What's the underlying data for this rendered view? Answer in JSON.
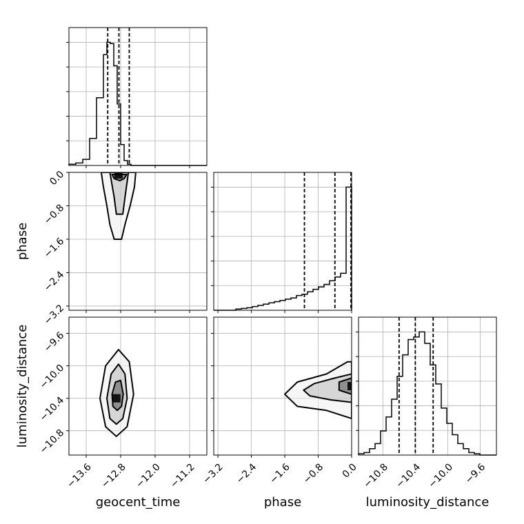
{
  "chart_data": {
    "type": "corner",
    "parameters": [
      "geocent_time",
      "phase",
      "luminosity_distance"
    ],
    "axes": {
      "geocent_time": {
        "label": "geocent_time",
        "range": [
          -14.0,
          -10.8
        ],
        "ticks": [
          -13.6,
          -12.8,
          -12.0,
          -11.2
        ],
        "tick_labels": [
          "−13.6",
          "−12.8",
          "−12.0",
          "−11.2"
        ],
        "quantiles": [
          -13.1,
          -12.84,
          -12.6
        ]
      },
      "phase": {
        "label": "phase",
        "range": [
          -3.3,
          0.0
        ],
        "ticks": [
          -3.2,
          -2.4,
          -1.6,
          -0.8,
          0.0
        ],
        "tick_labels": [
          "−3.2",
          "−2.4",
          "−1.6",
          "−0.8",
          "0.0"
        ],
        "quantiles": [
          -1.13,
          -0.4,
          0.0
        ]
      },
      "luminosity_distance": {
        "label": "luminosity_distance",
        "range": [
          -11.1,
          -9.4
        ],
        "ticks": [
          -10.8,
          -10.4,
          -10.0,
          -9.6
        ],
        "tick_labels": [
          "−10.8",
          "−10.4",
          "−10.0",
          "−9.6"
        ],
        "quantiles": [
          -10.6,
          -10.4,
          -10.18
        ]
      }
    },
    "histograms": {
      "geocent_time": {
        "bin_edges": [
          -14.0,
          -13.84,
          -13.68,
          -13.52,
          -13.36,
          -13.2,
          -13.12,
          -13.04,
          -12.96,
          -12.88,
          -12.8,
          -12.72,
          -12.64,
          -12.56,
          -12.48,
          -12.4,
          -12.24,
          -12.08,
          -11.92,
          -11.76,
          -11.6,
          -11.44,
          -11.28,
          -11.12,
          -10.96,
          -10.8
        ],
        "counts": [
          0.01,
          0.02,
          0.05,
          0.22,
          0.55,
          0.9,
          1.0,
          0.99,
          0.81,
          0.5,
          0.17,
          0.04,
          0.01,
          0.0,
          0.0,
          0.0,
          0.0,
          0.0,
          0.0,
          0.0,
          0.0,
          0.0,
          0.0,
          0.0,
          0.0
        ]
      },
      "phase": {
        "bin_edges": [
          -3.3,
          -3.168,
          -3.036,
          -2.904,
          -2.772,
          -2.64,
          -2.508,
          -2.376,
          -2.244,
          -2.112,
          -1.98,
          -1.848,
          -1.716,
          -1.584,
          -1.452,
          -1.32,
          -1.188,
          -1.056,
          -0.924,
          -0.792,
          -0.66,
          -0.528,
          -0.396,
          -0.264,
          -0.132,
          0.0
        ],
        "counts": [
          0.0,
          0.0,
          0.0,
          0.0,
          0.01,
          0.015,
          0.02,
          0.03,
          0.04,
          0.05,
          0.06,
          0.07,
          0.08,
          0.09,
          0.1,
          0.12,
          0.13,
          0.15,
          0.17,
          0.19,
          0.21,
          0.24,
          0.27,
          0.3,
          1.0
        ]
      },
      "luminosity_distance": {
        "bin_edges": [
          -11.1,
          -11.032,
          -10.964,
          -10.896,
          -10.828,
          -10.76,
          -10.692,
          -10.624,
          -10.556,
          -10.488,
          -10.42,
          -10.352,
          -10.284,
          -10.216,
          -10.148,
          -10.08,
          -10.012,
          -9.944,
          -9.876,
          -9.808,
          -9.74,
          -9.672,
          -9.604,
          -9.536,
          -9.468,
          -9.4
        ],
        "counts": [
          0.01,
          0.02,
          0.05,
          0.09,
          0.19,
          0.3,
          0.44,
          0.62,
          0.79,
          0.91,
          0.93,
          0.97,
          0.88,
          0.71,
          0.56,
          0.37,
          0.25,
          0.16,
          0.09,
          0.05,
          0.02,
          0.01,
          0.0,
          0.0,
          0.0
        ]
      }
    },
    "contours_2d": {
      "geocent_time__phase": {
        "levels": [
          [
            [
              -13.25,
              0.0
            ],
            [
              -13.2,
              -0.35
            ],
            [
              -13.12,
              -0.8
            ],
            [
              -13.05,
              -1.25
            ],
            [
              -12.95,
              -1.6
            ],
            [
              -12.78,
              -1.6
            ],
            [
              -12.7,
              -1.25
            ],
            [
              -12.58,
              -0.8
            ],
            [
              -12.48,
              -0.35
            ],
            [
              -12.45,
              0.0
            ]
          ],
          [
            [
              -13.05,
              0.0
            ],
            [
              -13.0,
              -0.3
            ],
            [
              -12.95,
              -0.6
            ],
            [
              -12.9,
              -1.0
            ],
            [
              -12.75,
              -1.0
            ],
            [
              -12.7,
              -0.6
            ],
            [
              -12.66,
              -0.3
            ],
            [
              -12.62,
              0.0
            ]
          ],
          [
            [
              -13.0,
              -0.05
            ],
            [
              -12.95,
              -0.15
            ],
            [
              -12.82,
              -0.2
            ],
            [
              -12.72,
              -0.15
            ],
            [
              -12.66,
              -0.05
            ]
          ]
        ],
        "density_peak": [
          -12.85,
          -0.05
        ]
      },
      "geocent_time__luminosity_distance": {
        "levels": [
          [
            [
              -13.15,
              -10.75
            ],
            [
              -13.28,
              -10.4
            ],
            [
              -13.15,
              -10.0
            ],
            [
              -12.85,
              -9.8
            ],
            [
              -12.6,
              -9.95
            ],
            [
              -12.5,
              -10.35
            ],
            [
              -12.65,
              -10.75
            ],
            [
              -12.9,
              -10.87
            ]
          ],
          [
            [
              -13.05,
              -10.65
            ],
            [
              -13.12,
              -10.4
            ],
            [
              -13.02,
              -10.1
            ],
            [
              -12.85,
              -9.98
            ],
            [
              -12.7,
              -10.1
            ],
            [
              -12.65,
              -10.4
            ],
            [
              -12.75,
              -10.65
            ],
            [
              -12.9,
              -10.72
            ]
          ],
          [
            [
              -12.98,
              -10.5
            ],
            [
              -13.0,
              -10.35
            ],
            [
              -12.92,
              -10.2
            ],
            [
              -12.8,
              -10.18
            ],
            [
              -12.74,
              -10.35
            ],
            [
              -12.78,
              -10.5
            ],
            [
              -12.88,
              -10.55
            ]
          ]
        ],
        "density_peak": [
          -12.9,
          -10.4
        ]
      },
      "phase__luminosity_distance": {
        "levels": [
          [
            [
              0.0,
              -10.65
            ],
            [
              -0.6,
              -10.55
            ],
            [
              -1.3,
              -10.5
            ],
            [
              -1.6,
              -10.35
            ],
            [
              -1.3,
              -10.2
            ],
            [
              -0.6,
              -10.1
            ],
            [
              -0.1,
              -9.95
            ],
            [
              0.0,
              -9.95
            ]
          ],
          [
            [
              0.0,
              -10.45
            ],
            [
              -0.5,
              -10.42
            ],
            [
              -1.0,
              -10.37
            ],
            [
              -1.15,
              -10.3
            ],
            [
              -0.9,
              -10.22
            ],
            [
              -0.4,
              -10.15
            ],
            [
              0.0,
              -10.1
            ]
          ],
          [
            [
              0.0,
              -10.35
            ],
            [
              -0.3,
              -10.3
            ],
            [
              -0.3,
              -10.2
            ],
            [
              0.0,
              -10.15
            ]
          ]
        ],
        "density_peak": [
          0.0,
          -10.25
        ]
      }
    }
  }
}
